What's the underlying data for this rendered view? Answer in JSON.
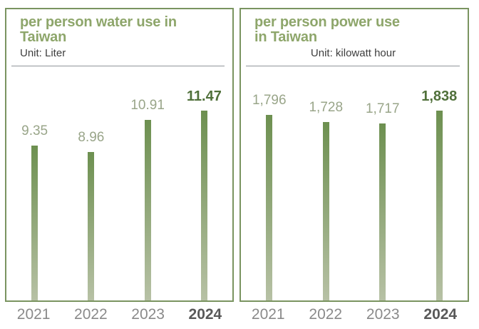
{
  "colors": {
    "panel_border": "#7a9460",
    "title": "#8ea66b",
    "unit_text": "#3d3d3d",
    "divider": "#90969b",
    "value_label": "#99a589",
    "value_label_emphasis": "#50703a",
    "bar_top": "#6d9050",
    "bar_bottom": "#b7c1a5",
    "year_label": "#8a8a8a",
    "year_label_emphasis": "#595959"
  },
  "chart_data": [
    {
      "type": "bar",
      "title": "per person water use in Taiwan",
      "title_lines": [
        "per person water use in",
        "Taiwan"
      ],
      "unit_label": "Unit: Liter",
      "unit_align": "left",
      "categories": [
        "2021",
        "2022",
        "2023",
        "2024"
      ],
      "values": [
        9.35,
        8.96,
        10.91,
        11.47
      ],
      "value_labels": [
        "9.35",
        "8.96",
        "10.91",
        "11.47"
      ],
      "emphasized_index": 3,
      "ylabel": "Liter",
      "ylim": [
        0,
        11.47
      ],
      "grid": false,
      "legend": false
    },
    {
      "type": "bar",
      "title": "per person power use in Taiwan",
      "title_lines": [
        "per person power use",
        "in Taiwan"
      ],
      "unit_label": "Unit: kilowatt hour",
      "unit_align": "center",
      "categories": [
        "2021",
        "2022",
        "2023",
        "2024"
      ],
      "values": [
        1796,
        1728,
        1717,
        1838
      ],
      "value_labels": [
        "1,796",
        "1,728",
        "1,717",
        "1,838"
      ],
      "emphasized_index": 3,
      "ylabel": "kilowatt hour",
      "ylim": [
        0,
        1838
      ],
      "grid": false,
      "legend": false
    }
  ]
}
